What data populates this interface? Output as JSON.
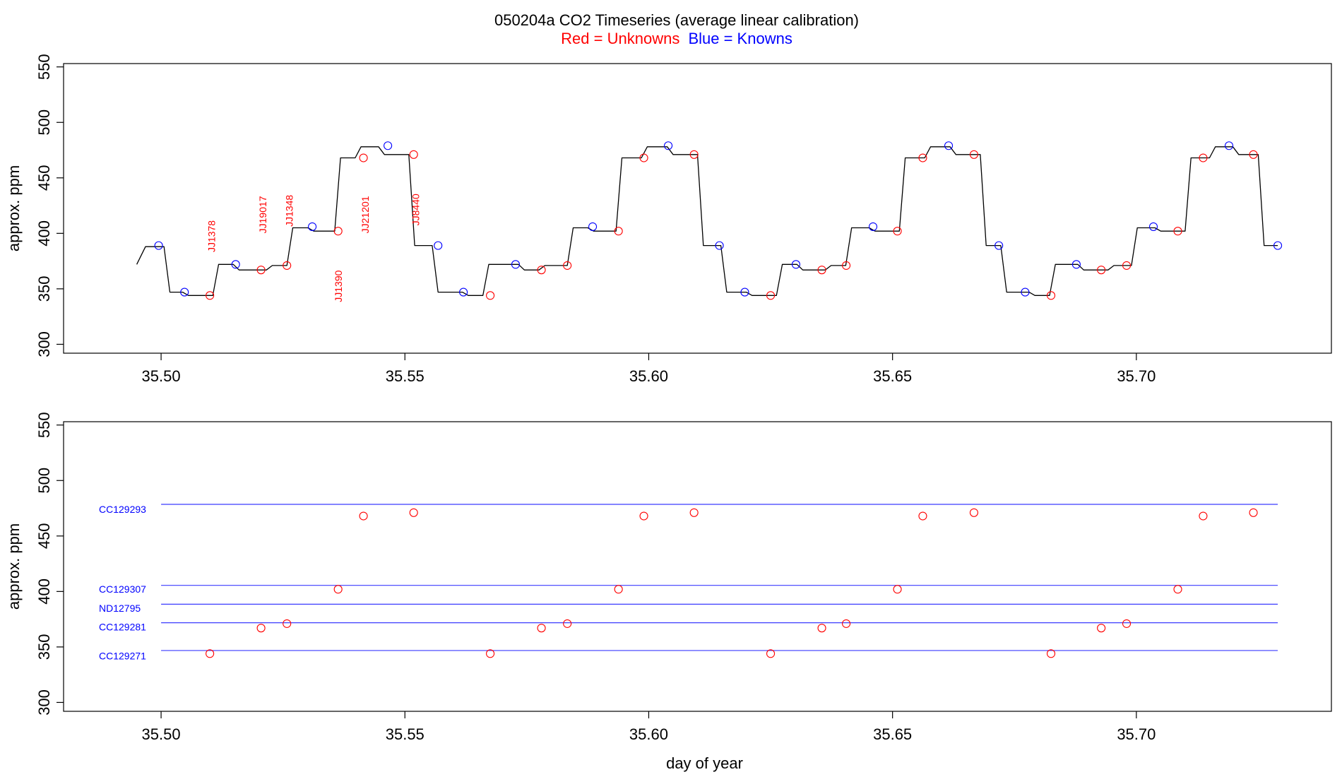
{
  "header": {
    "title": "050204a   CO2 Timeseries (average linear calibration)",
    "legend_red": "Red = Unknowns",
    "legend_blue": "Blue = Knowns"
  },
  "colors": {
    "red": "#ff0000",
    "blue": "#0000ff",
    "line": "#000000",
    "ref_line": "#3b3bff"
  },
  "chart_data": [
    {
      "type": "line",
      "title": "",
      "xlabel": "",
      "ylabel": "approx. ppm",
      "xlim": [
        35.48,
        35.74
      ],
      "ylim": [
        292,
        553
      ],
      "x_ticks": [
        35.5,
        35.55,
        35.6,
        35.65,
        35.7
      ],
      "x_tick_labels": [
        "35.50",
        "35.55",
        "35.60",
        "35.65",
        "35.70"
      ],
      "y_ticks": [
        300,
        350,
        400,
        450,
        500,
        550
      ],
      "y_tick_labels": [
        "300",
        "350",
        "400",
        "450",
        "500",
        "550"
      ],
      "grid": false,
      "trace": {
        "x": [
          35.495,
          35.4968,
          35.5006,
          35.5018,
          35.5044,
          35.5056,
          35.5106,
          35.5118,
          35.5148,
          35.516,
          35.5216,
          35.5228,
          35.5258,
          35.527,
          35.5301,
          35.5313,
          35.5356,
          35.5368,
          35.5398,
          35.541,
          35.5446,
          35.5458,
          35.5508,
          35.552,
          35.5556,
          35.5568,
          35.5618,
          35.563,
          35.566,
          35.5672,
          35.5733,
          35.5745,
          35.5775,
          35.5787,
          35.5833,
          35.5845,
          35.5875,
          35.5887,
          35.5933,
          35.5945,
          35.5985,
          35.5997,
          35.6038,
          35.605,
          35.61,
          35.6112,
          35.6148,
          35.616,
          35.62,
          35.6212,
          35.6262,
          35.6274,
          35.6304,
          35.6316,
          35.6362,
          35.6374,
          35.6404,
          35.6416,
          35.6452,
          35.6464,
          35.6514,
          35.6526,
          35.6566,
          35.6578,
          35.6618,
          35.663,
          35.668,
          35.6692,
          35.6722,
          35.6734,
          35.678,
          35.6792,
          35.6822,
          35.6834,
          35.688,
          35.6892,
          35.6942,
          35.6954,
          35.699,
          35.7002,
          35.7038,
          35.705,
          35.71,
          35.7112,
          35.715,
          35.7162,
          35.7198,
          35.721,
          35.725,
          35.7262,
          35.729
        ],
        "y": [
          372,
          388,
          388,
          347,
          347,
          344,
          344,
          372,
          372,
          367,
          367,
          371,
          371,
          405,
          405,
          402,
          402,
          468,
          468,
          478,
          478,
          471,
          471,
          389,
          389,
          347,
          347,
          344,
          344,
          372,
          372,
          367,
          367,
          371,
          371,
          405,
          405,
          402,
          402,
          468,
          468,
          478,
          478,
          471,
          471,
          389,
          389,
          347,
          347,
          344,
          344,
          372,
          372,
          367,
          367,
          371,
          371,
          405,
          405,
          402,
          402,
          468,
          468,
          478,
          478,
          471,
          471,
          389,
          389,
          347,
          347,
          344,
          344,
          372,
          372,
          367,
          367,
          371,
          371,
          405,
          405,
          402,
          402,
          468,
          468,
          478,
          478,
          471,
          471,
          389,
          389
        ]
      },
      "series": [
        {
          "marker": "circle-red",
          "x": [
            35.51,
            35.5205,
            35.5258,
            35.5363,
            35.5415,
            35.5518,
            35.5675,
            35.578,
            35.5833,
            35.5938,
            35.599,
            35.6093,
            35.625,
            35.6355,
            35.6405,
            35.651,
            35.6562,
            35.6667,
            35.6825,
            35.6928,
            35.698,
            35.7085,
            35.7137,
            35.724
          ],
          "y": [
            344,
            367,
            371,
            402,
            468,
            471,
            344,
            367,
            371,
            402,
            468,
            471,
            344,
            367,
            371,
            402,
            468,
            471,
            344,
            367,
            371,
            402,
            468,
            471
          ]
        },
        {
          "marker": "circle-blue",
          "x": [
            35.4995,
            35.5048,
            35.5153,
            35.531,
            35.5465,
            35.5568,
            35.562,
            35.5727,
            35.5885,
            35.604,
            35.6145,
            35.6197,
            35.6302,
            35.646,
            35.6615,
            35.6718,
            35.6772,
            35.6877,
            35.7035,
            35.719,
            35.729
          ],
          "y": [
            389,
            347,
            372,
            406,
            479,
            389,
            347,
            372,
            406,
            479,
            389,
            347,
            372,
            406,
            479,
            389,
            347,
            372,
            406,
            479,
            389
          ]
        }
      ],
      "annotations": [
        {
          "text": "JJ1378",
          "x": 35.5111,
          "y": 383
        },
        {
          "text": "JJ19017",
          "x": 35.5216,
          "y": 400
        },
        {
          "text": "JJ1348",
          "x": 35.527,
          "y": 406
        },
        {
          "text": "JJ1390",
          "x": 35.5371,
          "y": 338
        },
        {
          "text": "JJ21201",
          "x": 35.5426,
          "y": 400
        },
        {
          "text": "JJ8440",
          "x": 35.5529,
          "y": 407
        }
      ]
    },
    {
      "type": "scatter",
      "title": "",
      "xlabel": "day of year",
      "ylabel": "approx. ppm",
      "xlim": [
        35.48,
        35.74
      ],
      "ylim": [
        292,
        553
      ],
      "x_ticks": [
        35.5,
        35.55,
        35.6,
        35.65,
        35.7
      ],
      "x_tick_labels": [
        "35.50",
        "35.55",
        "35.60",
        "35.65",
        "35.70"
      ],
      "y_ticks": [
        300,
        350,
        400,
        450,
        500,
        550
      ],
      "y_tick_labels": [
        "300",
        "350",
        "400",
        "450",
        "500",
        "550"
      ],
      "grid": false,
      "reference_lines": [
        {
          "label": "CC129293",
          "y": 478.5,
          "label_y": 474,
          "x_start": 35.5,
          "x_end": 35.729
        },
        {
          "label": "CC129307",
          "y": 405.5,
          "label_y": 402,
          "x_start": 35.5,
          "x_end": 35.729
        },
        {
          "label": "ND12795",
          "y": 388.5,
          "label_y": 385,
          "x_start": 35.5,
          "x_end": 35.729
        },
        {
          "label": "CC129281",
          "y": 371.8,
          "label_y": 368,
          "x_start": 35.5,
          "x_end": 35.729
        },
        {
          "label": "CC129271",
          "y": 346.8,
          "label_y": 342,
          "x_start": 35.5,
          "x_end": 35.729
        }
      ],
      "series": [
        {
          "marker": "circle-red",
          "x": [
            35.51,
            35.5205,
            35.5258,
            35.5363,
            35.5415,
            35.5518,
            35.5675,
            35.578,
            35.5833,
            35.5938,
            35.599,
            35.6093,
            35.625,
            35.6355,
            35.6405,
            35.651,
            35.6562,
            35.6667,
            35.6825,
            35.6928,
            35.698,
            35.7085,
            35.7137,
            35.724
          ],
          "y": [
            344,
            367,
            371,
            402,
            468,
            471,
            344,
            367,
            371,
            402,
            468,
            471,
            344,
            367,
            371,
            402,
            468,
            471,
            344,
            367,
            371,
            402,
            468,
            471
          ]
        }
      ]
    }
  ]
}
